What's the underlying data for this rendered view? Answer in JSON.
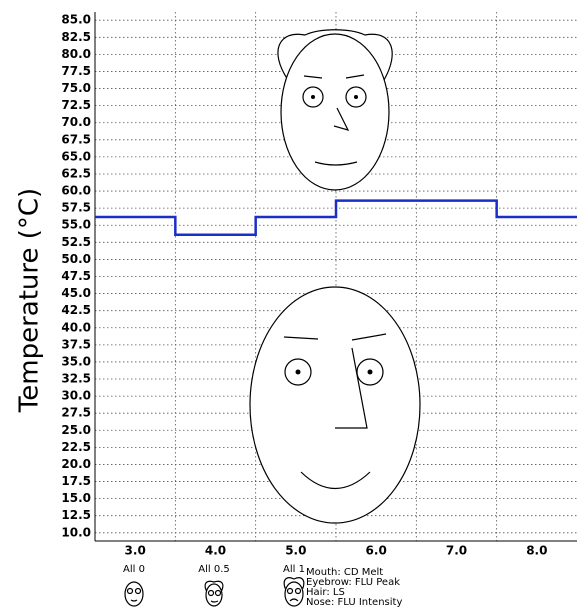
{
  "chart_data": {
    "type": "step",
    "y_label": "Temperature (°C)",
    "x": [
      3,
      4,
      5,
      6,
      7,
      8
    ],
    "values": [
      56.2,
      53.6,
      56.2,
      58.6,
      58.6,
      56.2
    ],
    "color": "#1a2fc8",
    "xlim": [
      2.5,
      8.5
    ],
    "ylim": [
      8.8,
      86.2
    ],
    "xticks": [
      {
        "value": 3,
        "label": "3.0"
      },
      {
        "value": 4,
        "label": "4.0"
      },
      {
        "value": 5,
        "label": "5.0"
      },
      {
        "value": 6,
        "label": "6.0"
      },
      {
        "value": 7,
        "label": "7.0"
      },
      {
        "value": 8,
        "label": "8.0"
      }
    ],
    "x_gridlines": [
      3.5,
      4.5,
      5.5,
      6.5,
      7.5
    ],
    "yticks": [
      {
        "value": 10,
        "label": "10.0"
      },
      {
        "value": 12.5,
        "label": "12.5"
      },
      {
        "value": 15,
        "label": "15.0"
      },
      {
        "value": 17.5,
        "label": "17.5"
      },
      {
        "value": 20,
        "label": "20.0"
      },
      {
        "value": 22.5,
        "label": "22.5"
      },
      {
        "value": 25,
        "label": "25.0"
      },
      {
        "value": 27.5,
        "label": "27.5"
      },
      {
        "value": 30,
        "label": "30.0"
      },
      {
        "value": 32.5,
        "label": "32.5"
      },
      {
        "value": 35,
        "label": "35.0"
      },
      {
        "value": 37.5,
        "label": "37.5"
      },
      {
        "value": 40,
        "label": "40.0"
      },
      {
        "value": 42.5,
        "label": "42.5"
      },
      {
        "value": 45,
        "label": "45.0"
      },
      {
        "value": 47.5,
        "label": "47.5"
      },
      {
        "value": 50,
        "label": "50.0"
      },
      {
        "value": 52.5,
        "label": "52.5"
      },
      {
        "value": 55,
        "label": "55.0"
      },
      {
        "value": 57.5,
        "label": "57.5"
      },
      {
        "value": 60,
        "label": "60.0"
      },
      {
        "value": 62.5,
        "label": "62.5"
      },
      {
        "value": 65,
        "label": "65.0"
      },
      {
        "value": 67.5,
        "label": "67.5"
      },
      {
        "value": 70,
        "label": "70.0"
      },
      {
        "value": 72.5,
        "label": "72.5"
      },
      {
        "value": 75,
        "label": "75.0"
      },
      {
        "value": 77.5,
        "label": "77.5"
      },
      {
        "value": 80,
        "label": "80.0"
      },
      {
        "value": 82.5,
        "label": "82.5"
      },
      {
        "value": 85,
        "label": "85.0"
      }
    ],
    "grid": true,
    "face_legend": {
      "keys": [
        "All 0",
        "All 0.5",
        "All 1"
      ],
      "features": [
        "Mouth: CD Melt",
        "Eyebrow: FLU Peak",
        "Hair: LS",
        "Nose: FLU Intensity"
      ]
    }
  }
}
